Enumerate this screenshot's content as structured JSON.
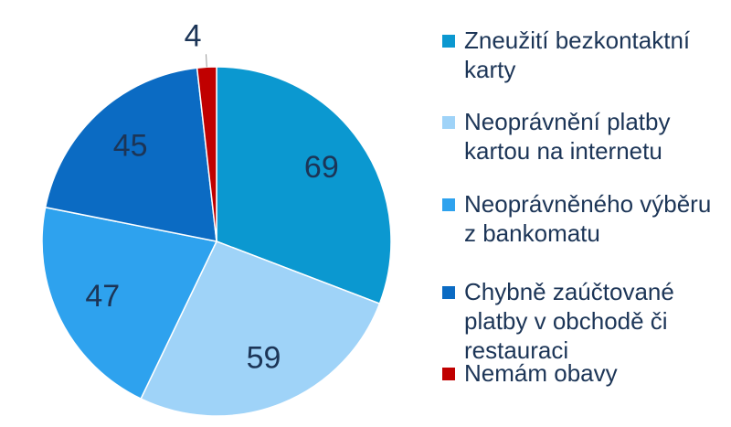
{
  "chart_data": {
    "type": "pie",
    "categories": [
      "Zneužití bezkontaktní karty",
      "Neoprávnění platby kartou na internetu",
      "Neoprávněného výběru z bankomatu",
      "Chybně zaúčtované platby v obchodě či restauraci",
      "Nemám obavy"
    ],
    "values": [
      69,
      59,
      47,
      45,
      4
    ],
    "colors": [
      "#0b98d0",
      "#9fd3f8",
      "#2ea2ee",
      "#0b6bc3",
      "#c00000"
    ]
  }
}
